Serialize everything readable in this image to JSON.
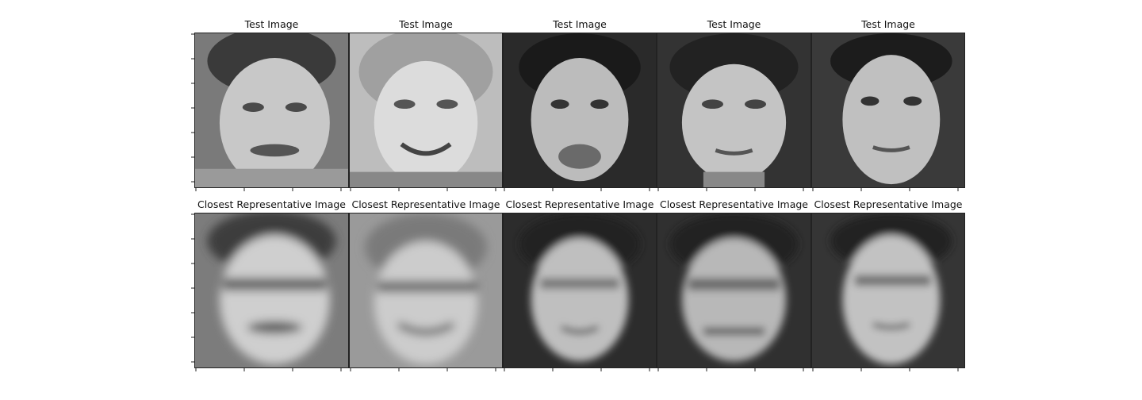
{
  "figure": {
    "rows": [
      {
        "row_title": "Test Image",
        "style": "sharp",
        "faces": [
          {
            "tone": "mid"
          },
          {
            "tone": "light"
          },
          {
            "tone": "dark"
          },
          {
            "tone": "dark"
          },
          {
            "tone": "dark"
          }
        ]
      },
      {
        "row_title": "Closest Representative Image",
        "style": "blurred",
        "faces": [
          {
            "tone": "mid"
          },
          {
            "tone": "light"
          },
          {
            "tone": "dark"
          },
          {
            "tone": "dark"
          },
          {
            "tone": "dark"
          }
        ]
      }
    ]
  }
}
